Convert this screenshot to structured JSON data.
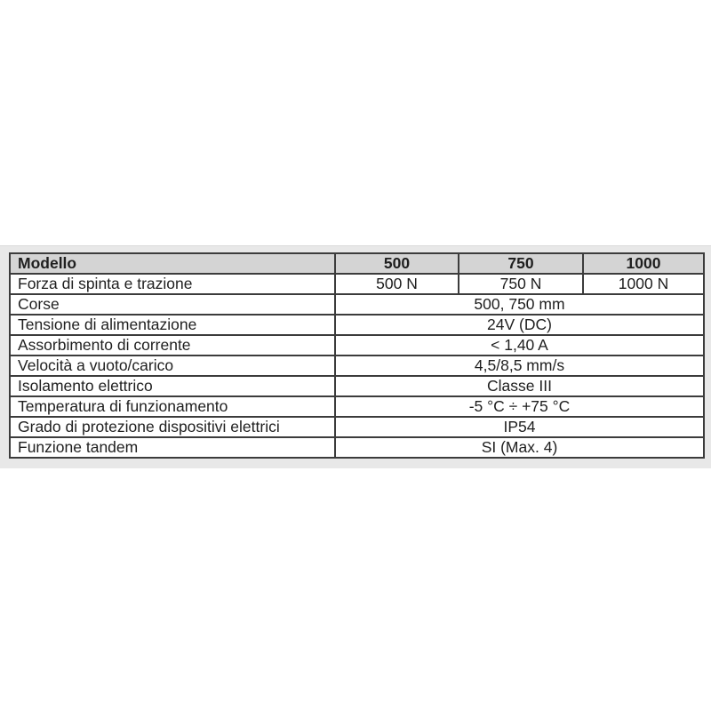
{
  "theme": {
    "band_bg": "#e8e8e8",
    "header_bg": "#d4d4d4",
    "border_color": "#3c3c3c",
    "text_color": "#1f1f1f",
    "page_bg": "#ffffff"
  },
  "table": {
    "header": {
      "label": "Modello",
      "columns": [
        "500",
        "750",
        "1000"
      ]
    },
    "force_row": {
      "label": "Forza di spinta e trazione",
      "values": [
        "500 N",
        "750 N",
        "1000 N"
      ]
    },
    "rows": [
      {
        "label": "Corse",
        "value": "500, 750 mm"
      },
      {
        "label": "Tensione di alimentazione",
        "value": "24V (DC)"
      },
      {
        "label": "Assorbimento di corrente",
        "value": "< 1,40 A"
      },
      {
        "label": "Velocità a vuoto/carico",
        "value": "4,5/8,5 mm/s"
      },
      {
        "label": "Isolamento elettrico",
        "value": "Classe III"
      },
      {
        "label": "Temperatura di funzionamento",
        "value": "-5 °C ÷ +75 °C"
      },
      {
        "label": "Grado di protezione dispositivi elettrici",
        "value": "IP54"
      },
      {
        "label": "Funzione tandem",
        "value": "SI (Max. 4)"
      }
    ]
  }
}
